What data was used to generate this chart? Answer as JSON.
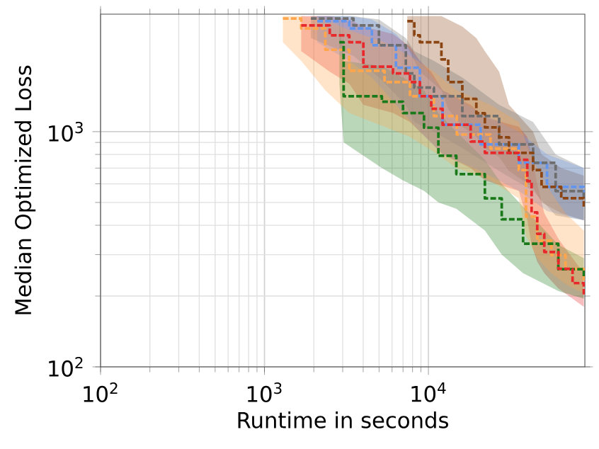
{
  "chart_data": {
    "type": "step",
    "xlabel": "Runtime in seconds",
    "ylabel": "Median Optimized Loss",
    "log": "xy",
    "grid": true,
    "line_style": "dashed",
    "marker": "none",
    "xlim": [
      100,
      90000
    ],
    "ylim": [
      100,
      3160
    ],
    "xticks": [
      {
        "value": 100,
        "label": "10$^{2}$"
      },
      {
        "value": 1000,
        "label": "10$^{3}$"
      },
      {
        "value": 10000,
        "label": "10$^{4}$"
      }
    ],
    "yticks": [
      {
        "value": 100,
        "label": "10$^{2}$"
      },
      {
        "value": 1000,
        "label": "10$^{3}$"
      }
    ],
    "series": [
      {
        "color": "#ffa64d",
        "x": [
          1295,
          1675,
          2350,
          3290,
          5400,
          7720,
          10800,
          14900,
          23900,
          35600,
          39400,
          46100,
          56200,
          68600,
          88700
        ],
        "values": [
          3030,
          2750,
          2230,
          1815,
          1625,
          1415,
          1165,
          972,
          847,
          687,
          435,
          344,
          299,
          261,
          233
        ],
        "upper": [
          3100,
          3100,
          3000,
          2700,
          2400,
          2100,
          1800,
          1500,
          1300,
          1100,
          900,
          700,
          550,
          450,
          380
        ],
        "lower": [
          2400,
          2000,
          1500,
          1200,
          1050,
          950,
          820,
          700,
          620,
          520,
          360,
          290,
          250,
          225,
          205
        ]
      },
      {
        "color": "#6495ed",
        "x": [
          2100,
          3290,
          4520,
          6340,
          8870,
          12200,
          20800,
          35600,
          52900,
          88700
        ],
        "values": [
          2950,
          2750,
          2330,
          1870,
          1415,
          1070,
          883,
          737,
          582,
          535
        ],
        "upper": [
          3100,
          3100,
          3000,
          2600,
          2000,
          1500,
          1200,
          1000,
          800,
          700
        ],
        "lower": [
          2400,
          2000,
          1700,
          1300,
          1000,
          800,
          680,
          560,
          460,
          420
        ]
      },
      {
        "color": "#6e6e6e",
        "x": [
          1920,
          3490,
          4990,
          7280,
          8200,
          10800,
          16100,
          27000,
          43500,
          59700,
          88700
        ],
        "values": [
          3030,
          2830,
          2330,
          1770,
          1540,
          1415,
          1165,
          883,
          737,
          559,
          521
        ],
        "upper": [
          3100,
          3100,
          3000,
          2500,
          2200,
          2000,
          1700,
          1300,
          1100,
          800,
          700
        ],
        "lower": [
          2500,
          2100,
          1700,
          1300,
          1100,
          1000,
          850,
          680,
          560,
          440,
          420
        ]
      },
      {
        "color": "#8b4513",
        "x": [
          7430,
          8200,
          8870,
          12000,
          13200,
          16100,
          19600,
          22100,
          27000,
          31000,
          43500,
          49000,
          64600,
          88700
        ],
        "values": [
          2950,
          2570,
          2400,
          2030,
          1625,
          1378,
          1197,
          1043,
          946,
          813,
          687,
          582,
          521,
          480
        ],
        "upper": [
          3100,
          3099,
          3099,
          3100,
          3000,
          2800,
          2500,
          2200,
          1800,
          1300,
          1000,
          800,
          700,
          650
        ],
        "lower": [
          2300,
          2000,
          1800,
          1500,
          1250,
          1050,
          950,
          850,
          780,
          680,
          580,
          500,
          450,
          420
        ]
      },
      {
        "color": "#1a7a1a",
        "x": [
          2860,
          3040,
          5200,
          7000,
          9400,
          11500,
          14800,
          22100,
          28000,
          37800,
          62000,
          88700
        ],
        "values": [
          2400,
          1415,
          1340,
          1200,
          1040,
          790,
          660,
          520,
          424,
          334,
          260,
          243
        ],
        "upper": [
          3000,
          2000,
          1900,
          1700,
          1500,
          1200,
          1000,
          760,
          600,
          480,
          330,
          290
        ],
        "lower": [
          1600,
          900,
          700,
          620,
          560,
          500,
          470,
          380,
          300,
          250,
          210,
          195
        ]
      },
      {
        "color": "#e8282b",
        "x": [
          1675,
          2500,
          3290,
          4010,
          6080,
          7720,
          8870,
          10400,
          12200,
          18100,
          22100,
          35600,
          40100,
          42600,
          46100,
          50900,
          62100,
          75700,
          88700
        ],
        "values": [
          2830,
          2570,
          2400,
          1890,
          1770,
          1625,
          1415,
          1250,
          1070,
          908,
          813,
          759,
          616,
          454,
          368,
          308,
          261,
          227,
          203
        ],
        "upper": [
          3100,
          3100,
          3000,
          2800,
          2600,
          2300,
          2000,
          1800,
          1500,
          1300,
          1150,
          1050,
          950,
          800,
          600,
          450,
          350,
          290,
          250
        ],
        "lower": [
          2200,
          1800,
          1600,
          1300,
          1200,
          1100,
          1000,
          900,
          800,
          700,
          620,
          560,
          420,
          330,
          280,
          250,
          215,
          195,
          180
        ]
      }
    ]
  }
}
